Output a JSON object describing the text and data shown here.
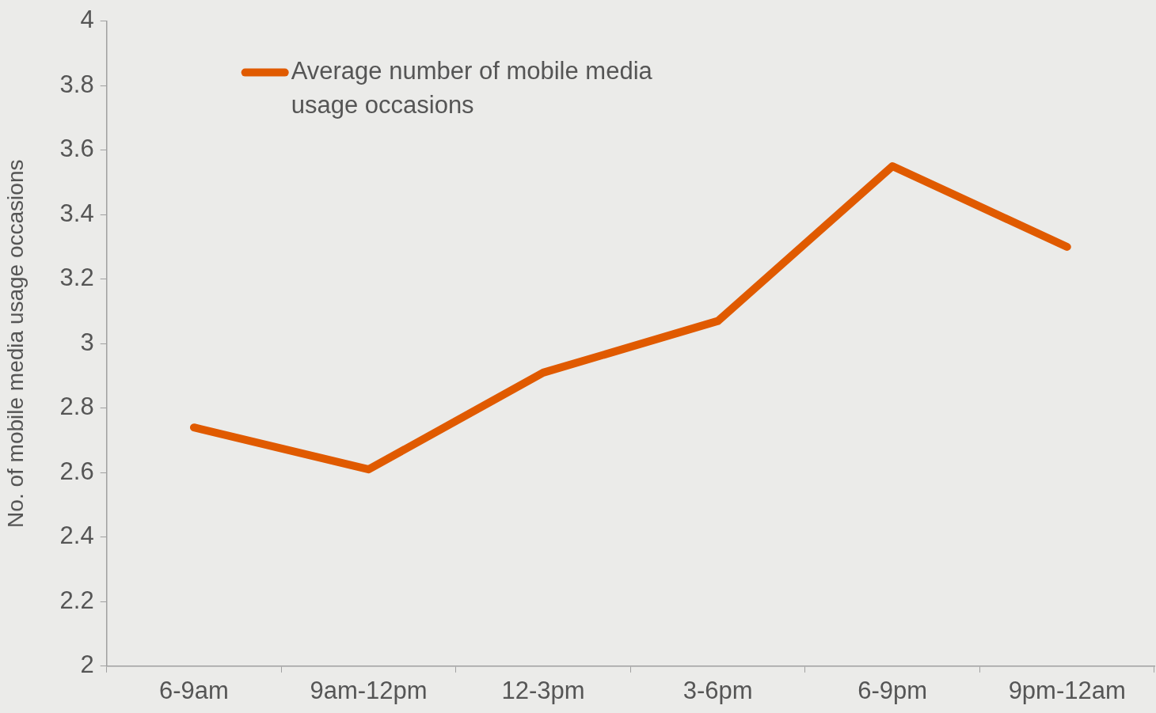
{
  "chart_data": {
    "type": "line",
    "ylabel": "No. of mobile media usage occasions",
    "categories": [
      "6-9am",
      "9am-12pm",
      "12-3pm",
      "3-6pm",
      "6-9pm",
      "9pm-12am"
    ],
    "series": [
      {
        "name": "Average number of mobile media usage occasions",
        "color": "#e05a00",
        "values": [
          2.74,
          2.61,
          2.91,
          3.07,
          3.55,
          3.3
        ]
      }
    ],
    "ylim": [
      2,
      4
    ],
    "yticks": [
      2,
      2.2,
      2.4,
      2.6,
      2.8,
      3,
      3.2,
      3.4,
      3.6,
      3.8,
      4
    ],
    "grid": false,
    "legend": "top left",
    "marker": "none",
    "line_style": "solid"
  }
}
